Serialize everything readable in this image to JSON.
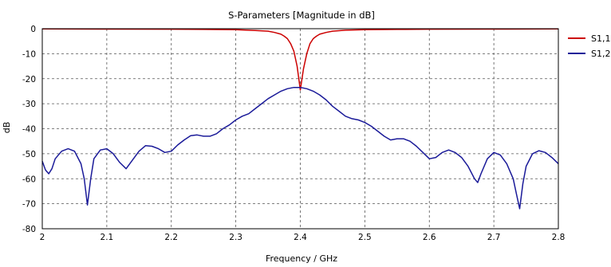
{
  "chart_data": {
    "type": "line",
    "title": "S-Parameters [Magnitude in dB]",
    "xlabel": "Frequency / GHz",
    "ylabel": "dB",
    "xlim": [
      2,
      2.8
    ],
    "ylim": [
      -80,
      0
    ],
    "grid": true,
    "legend_position": "right",
    "x_ticks": [
      "2",
      "2.1",
      "2.2",
      "2.3",
      "2.4",
      "2.5",
      "2.6",
      "2.7",
      "2.8"
    ],
    "y_ticks": [
      "0",
      "-10",
      "-20",
      "-30",
      "-40",
      "-50",
      "-60",
      "-70",
      "-80"
    ],
    "series": [
      {
        "name": "S1,1",
        "color": "#cc0000",
        "x": [
          2.0,
          2.1,
          2.2,
          2.25,
          2.3,
          2.33,
          2.35,
          2.36,
          2.37,
          2.375,
          2.38,
          2.385,
          2.39,
          2.395,
          2.4,
          2.405,
          2.41,
          2.415,
          2.42,
          2.425,
          2.43,
          2.44,
          2.45,
          2.47,
          2.5,
          2.55,
          2.6,
          2.7,
          2.8
        ],
        "y": [
          -0.1,
          -0.15,
          -0.2,
          -0.3,
          -0.4,
          -0.7,
          -1.0,
          -1.5,
          -2.2,
          -3.0,
          -4.0,
          -6.0,
          -9.0,
          -15.0,
          -24.5,
          -16.0,
          -10.0,
          -6.0,
          -4.0,
          -3.0,
          -2.2,
          -1.5,
          -1.0,
          -0.6,
          -0.4,
          -0.3,
          -0.2,
          -0.15,
          -0.1
        ]
      },
      {
        "name": "S1,2",
        "color": "#1a1a99",
        "x": [
          2.0,
          2.005,
          2.01,
          2.015,
          2.02,
          2.03,
          2.04,
          2.05,
          2.06,
          2.065,
          2.07,
          2.075,
          2.08,
          2.09,
          2.1,
          2.11,
          2.12,
          2.13,
          2.14,
          2.15,
          2.16,
          2.17,
          2.18,
          2.19,
          2.2,
          2.21,
          2.22,
          2.23,
          2.24,
          2.25,
          2.26,
          2.27,
          2.28,
          2.29,
          2.3,
          2.31,
          2.32,
          2.33,
          2.34,
          2.35,
          2.36,
          2.37,
          2.38,
          2.39,
          2.4,
          2.41,
          2.42,
          2.43,
          2.44,
          2.45,
          2.46,
          2.47,
          2.48,
          2.49,
          2.5,
          2.51,
          2.52,
          2.53,
          2.54,
          2.55,
          2.56,
          2.57,
          2.58,
          2.59,
          2.6,
          2.61,
          2.62,
          2.63,
          2.64,
          2.65,
          2.66,
          2.67,
          2.675,
          2.68,
          2.69,
          2.7,
          2.71,
          2.72,
          2.73,
          2.735,
          2.74,
          2.745,
          2.75,
          2.76,
          2.77,
          2.78,
          2.79,
          2.8
        ],
        "y": [
          -53,
          -56.5,
          -58,
          -56,
          -52,
          -49,
          -48,
          -49,
          -54,
          -60,
          -70.5,
          -60,
          -52,
          -48.5,
          -48,
          -50,
          -53.5,
          -56,
          -52.5,
          -49,
          -46.8,
          -47,
          -48,
          -49.5,
          -49,
          -46.5,
          -44.5,
          -42.8,
          -42.5,
          -43,
          -43,
          -42,
          -40,
          -38.5,
          -36.5,
          -35,
          -34,
          -32,
          -30,
          -28,
          -26.5,
          -25,
          -24,
          -23.5,
          -23.5,
          -24,
          -25,
          -26.5,
          -28.5,
          -31,
          -33,
          -35,
          -36,
          -36.5,
          -37.5,
          -39,
          -41,
          -43,
          -44.5,
          -44,
          -44,
          -45,
          -47,
          -49.5,
          -52,
          -51.5,
          -49.5,
          -48.5,
          -49.5,
          -51.5,
          -55,
          -60,
          -61.5,
          -58,
          -52,
          -49.5,
          -50.5,
          -54,
          -60,
          -66,
          -72,
          -62,
          -55,
          -50,
          -48.8,
          -49.5,
          -51.5,
          -54
        ]
      }
    ]
  }
}
